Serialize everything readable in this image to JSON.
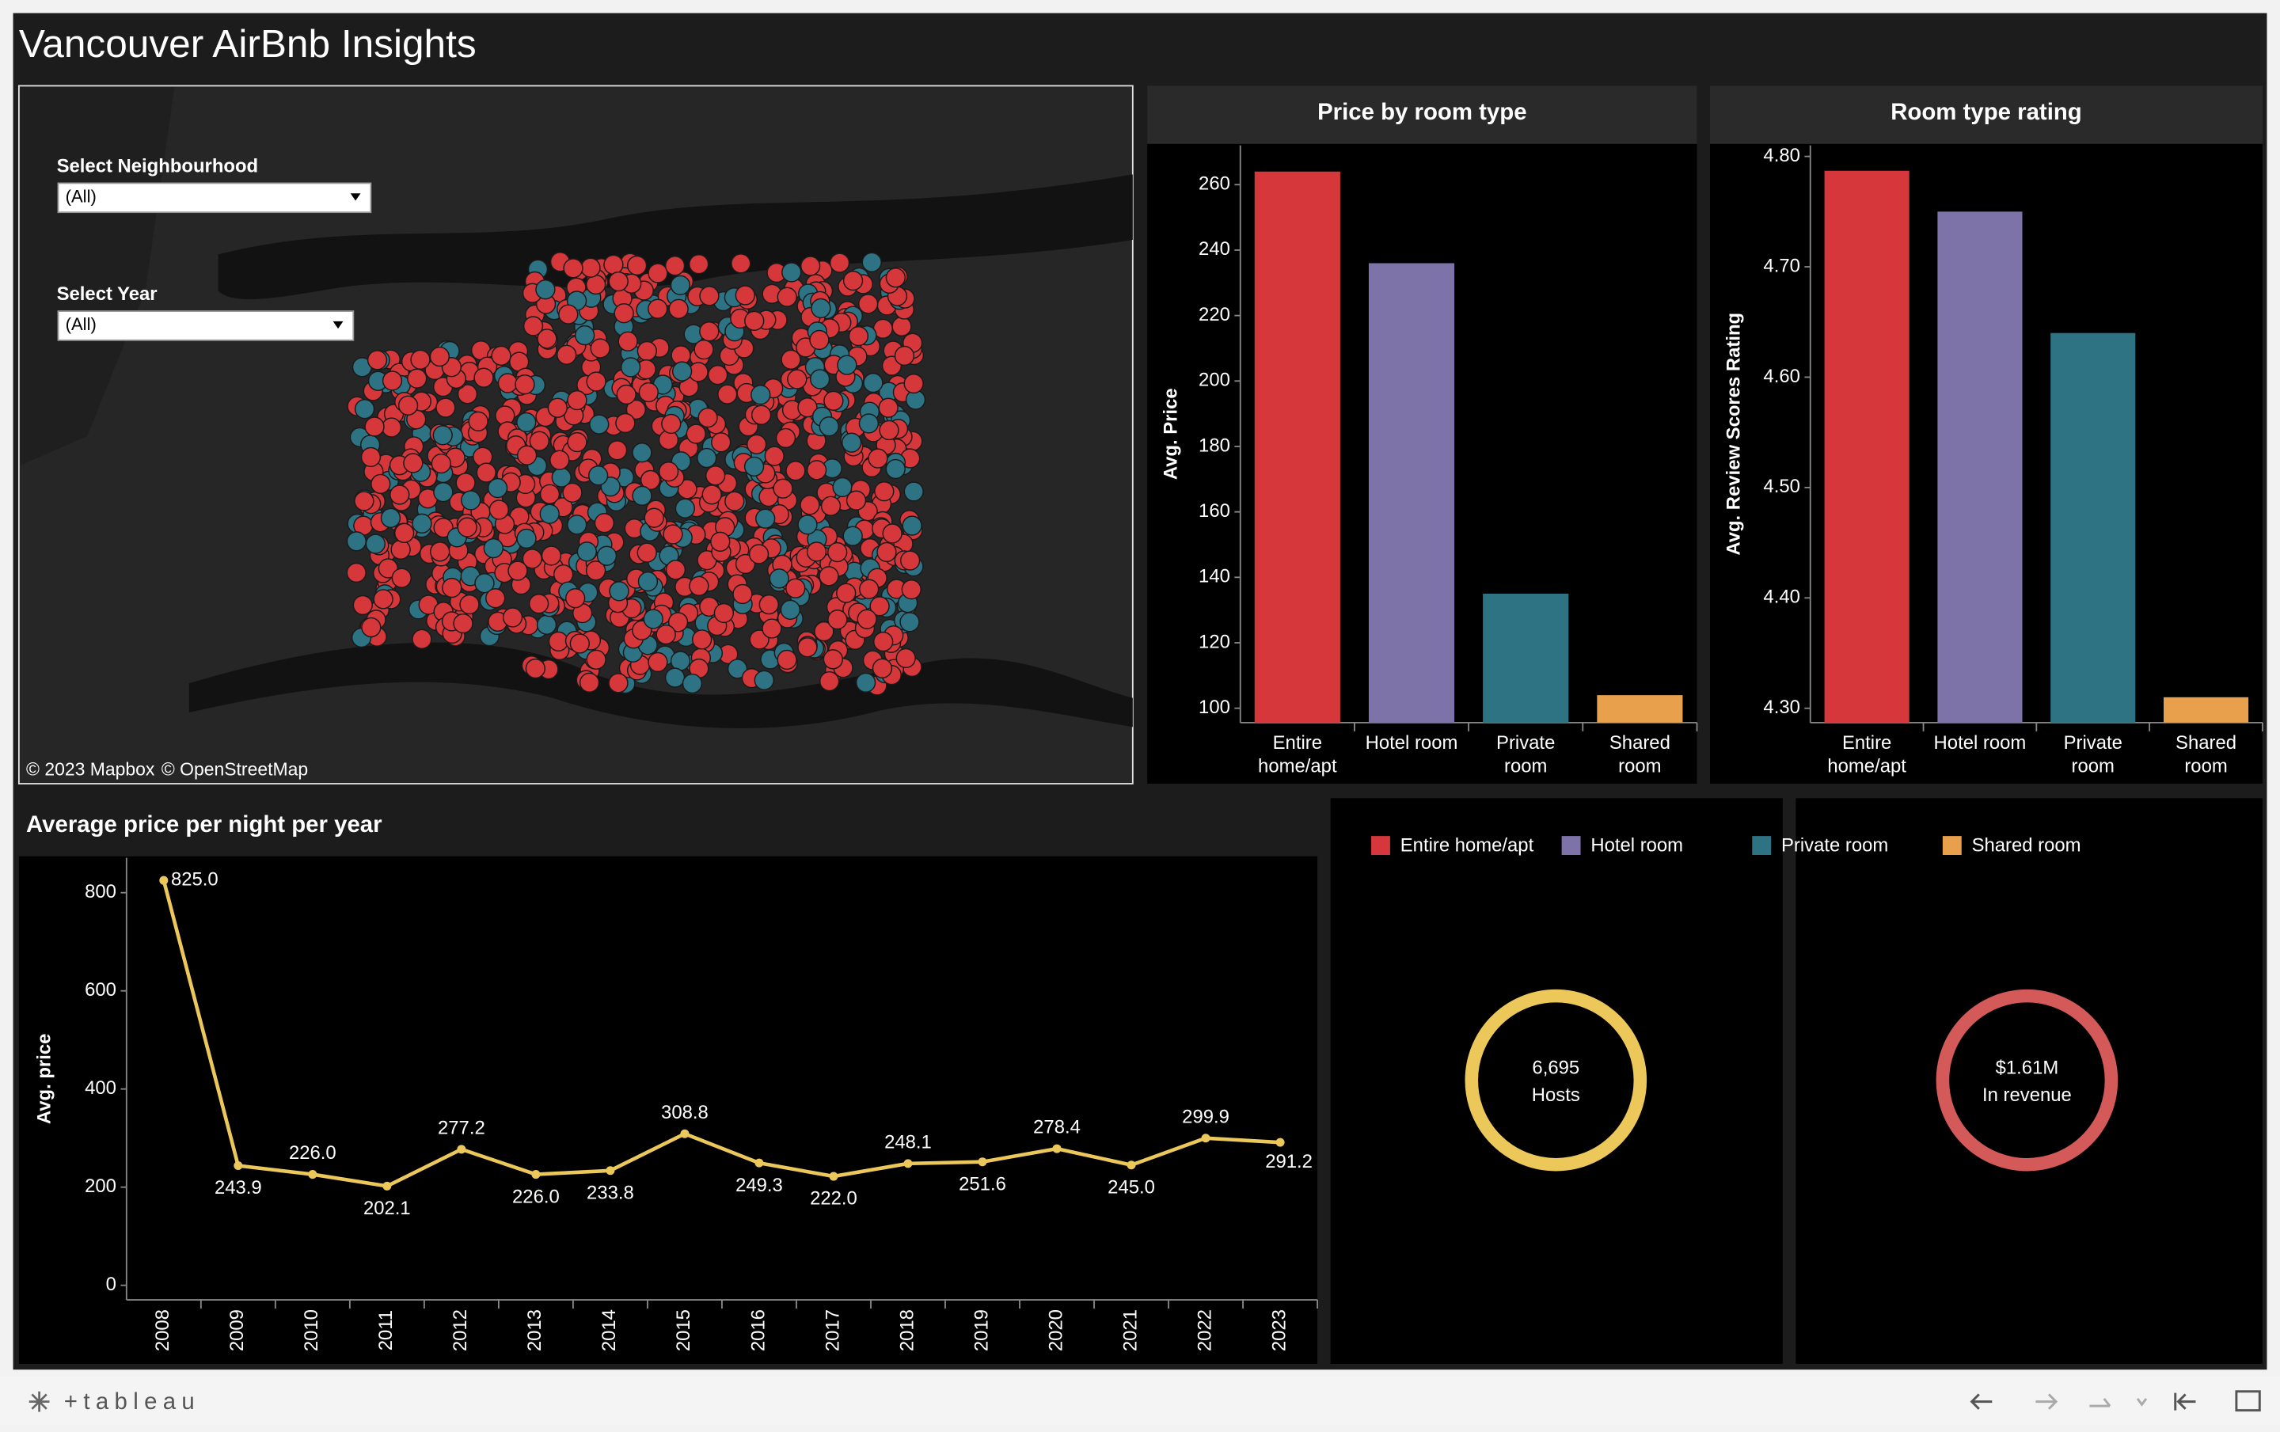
{
  "header": {
    "title": "Vancouver AirBnb Insights"
  },
  "map": {
    "filters": [
      {
        "label": "Select Neighbourhood",
        "value": "(All)"
      },
      {
        "label": "Select Year",
        "value": "(All)"
      }
    ],
    "attribution": [
      "© 2023 Mapbox",
      "© OpenStreetMap"
    ]
  },
  "chart_data": [
    {
      "type": "bar",
      "title": "Price by room type",
      "y_label": "Avg. Price",
      "categories": [
        "Entire home/apt",
        "Hotel room",
        "Private room",
        "Shared room"
      ],
      "values": [
        264,
        236,
        135,
        104
      ],
      "colors": [
        "#d5373b",
        "#7e73a8",
        "#2d7384",
        "#e8a04c"
      ],
      "ylim": [
        95.6,
        272
      ],
      "yticks": [
        100,
        120,
        140,
        160,
        180,
        200,
        220,
        240,
        260
      ]
    },
    {
      "type": "bar",
      "title": "Room type rating",
      "y_label": "Avg. Review Scores Rating",
      "categories": [
        "Entire home/apt",
        "Hotel room",
        "Private room",
        "Shared room"
      ],
      "values": [
        4.787,
        4.75,
        4.64,
        4.31
      ],
      "colors": [
        "#d5373b",
        "#7e73a8",
        "#2d7384",
        "#e8a04c"
      ],
      "ylim": [
        4.287,
        4.81
      ],
      "yticks": [
        {
          "value": 4.3,
          "label": "4.30"
        },
        {
          "value": 4.4,
          "label": "4.40"
        },
        {
          "value": 4.5,
          "label": "4.50"
        },
        {
          "value": 4.6,
          "label": "4.60"
        },
        {
          "value": 4.7,
          "label": "4.70"
        },
        {
          "value": 4.8,
          "label": "4.80"
        }
      ]
    },
    {
      "type": "line",
      "title": "Average price per night per year",
      "y_label": "Avg. price",
      "categories": [
        "2008",
        "2009",
        "2010",
        "2011",
        "2012",
        "2013",
        "2014",
        "2015",
        "2016",
        "2017",
        "2018",
        "2019",
        "2020",
        "2021",
        "2022",
        "2023"
      ],
      "values": [
        825,
        243.9,
        226,
        202.1,
        277.2,
        226,
        233.8,
        308.8,
        249.3,
        222,
        248.1,
        251.6,
        278.4,
        245,
        299.9,
        291.2
      ],
      "value_labels": [
        "825.0",
        "243.9",
        "226.0",
        "202.1",
        "277.2",
        "226.0",
        "233.8",
        "308.8",
        "249.3",
        "222.0",
        "248.1",
        "251.6",
        "278.4",
        "245.0",
        "299.9",
        "291.2"
      ],
      "color": "#ecc85a",
      "ylim": [
        -29.6,
        871
      ],
      "yticks": [
        0,
        200,
        400,
        600,
        800
      ]
    }
  ],
  "kpis": [
    {
      "value": "6,695",
      "label": "Hosts"
    },
    {
      "value": "$1.61M",
      "label": "In revenue"
    }
  ],
  "footer": {
    "brand": "+tableau"
  }
}
